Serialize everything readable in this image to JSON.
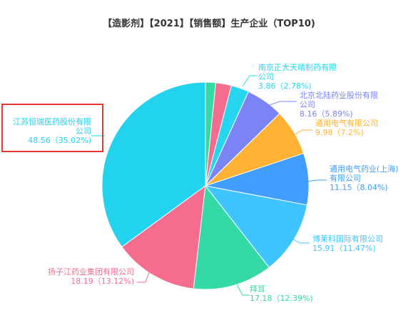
{
  "chart_data": {
    "type": "pie",
    "title": "【造影剂】【2021】【销售额】生产企业（TOP10)",
    "slices": [
      {
        "name": "江苏恒瑞医药股份有限公司",
        "value": 48.56,
        "percent": "35.02%",
        "color": "#22d3ee",
        "label_lines": [
          "江苏恒瑞医药股份有限",
          "公司",
          "48.56（35.02%)"
        ]
      },
      {
        "name": "扬子江药业集团有限公司",
        "value": 18.19,
        "percent": "13.12%",
        "color": "#f56c8f",
        "label_lines": [
          "扬子江药业集团有限公司",
          "18.19（13.12%)"
        ]
      },
      {
        "name": "拜耳",
        "value": 17.18,
        "percent": "12.39%",
        "color": "#35d9a6",
        "label_lines": [
          "拜耳",
          "17.18（12.39%)"
        ]
      },
      {
        "name": "博莱科国际有限公司",
        "value": 15.91,
        "percent": "11.47%",
        "color": "#40c4ff",
        "label_lines": [
          "博莱科国际有限公司",
          "15.91（11.47%)"
        ]
      },
      {
        "name": "通用电气药业(上海)有限公司",
        "value": 11.15,
        "percent": "8.04%",
        "color": "#409eff",
        "label_lines": [
          "通用电气药业(上海)",
          "有限公司",
          "11.15（8.04%)"
        ]
      },
      {
        "name": "通用电气有限公司",
        "value": 9.98,
        "percent": "7.2%",
        "color": "#ffb233",
        "label_lines": [
          "通用电气有限公司",
          "9.98（7.2%)"
        ]
      },
      {
        "name": "北京北陆药业股份有限公司",
        "value": 8.16,
        "percent": "5.89%",
        "color": "#7b84f5",
        "label_lines": [
          "北京北陆药业股份有限",
          "公司",
          "8.16（5.89%)"
        ]
      },
      {
        "name": "南京正大天晴制药有限公司",
        "value": 3.86,
        "percent": "2.78%",
        "color": "#26d6f0",
        "label_lines": [
          "南京正大天晴制药有限",
          "公司",
          "3.86（2.78%)"
        ]
      },
      {
        "name": "",
        "value": 3.4,
        "percent": "",
        "color": "#f56c8f",
        "label_lines": []
      },
      {
        "name": "",
        "value": 2.2,
        "percent": "",
        "color": "#35d9a6",
        "label_lines": []
      }
    ],
    "highlighted_slice": "江苏恒瑞医药股份有限公司",
    "highlight_color": "#e53935",
    "legend": "none"
  }
}
